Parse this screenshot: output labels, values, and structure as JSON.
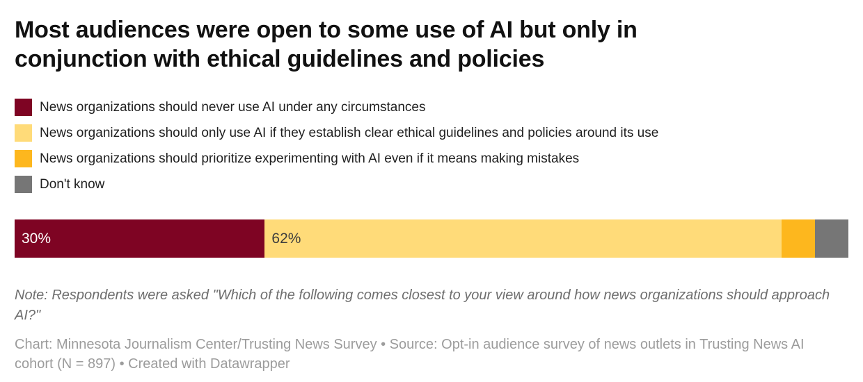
{
  "chart_data": {
    "type": "bar",
    "subtype": "horizontal-stacked-single",
    "title": "Most audiences were open to some use of AI but only in conjunction with ethical guidelines and policies",
    "unit": "%",
    "xlim": [
      0,
      100
    ],
    "grid": false,
    "legend_position": "top",
    "categories": [
      "News organizations should never use AI under any circumstances",
      "News organizations should only use AI if they establish clear ethical guidelines and policies around its use",
      "News organizations should prioritize experimenting with AI even if it means making mistakes",
      "Don't know"
    ],
    "values": [
      30,
      62,
      4,
      4
    ],
    "series": [
      {
        "label": "News organizations should never use AI under any circumstances",
        "value": 30,
        "display_label": "30%",
        "color": "#7E0423",
        "label_color": "#ffffff"
      },
      {
        "label": "News organizations should only use AI if they establish clear ethical guidelines and policies around its use",
        "value": 62,
        "display_label": "62%",
        "color": "#FFDB79",
        "label_color": "#3d3d3d"
      },
      {
        "label": "News organizations should prioritize experimenting with AI even if it means making mistakes",
        "value": 4,
        "display_label": "",
        "color": "#FDB71E",
        "label_color": "#3d3d3d"
      },
      {
        "label": "Don't know",
        "value": 4,
        "display_label": "",
        "color": "#767676",
        "label_color": "#ffffff"
      }
    ],
    "note": "Note: Respondents were asked \"Which of the following comes closest to your view around how news organizations should approach AI?\"",
    "footer": "Chart: Minnesota Journalism Center/Trusting News Survey • Source: Opt-in audience survey of news outlets in Trusting News AI cohort (N = 897) • Created with Datawrapper"
  },
  "colors": {
    "title_text": "#111111",
    "legend_text": "#1f1f1f",
    "note_text": "#6e6e6e",
    "footer_text": "#9c9c9c",
    "background": "#ffffff"
  }
}
